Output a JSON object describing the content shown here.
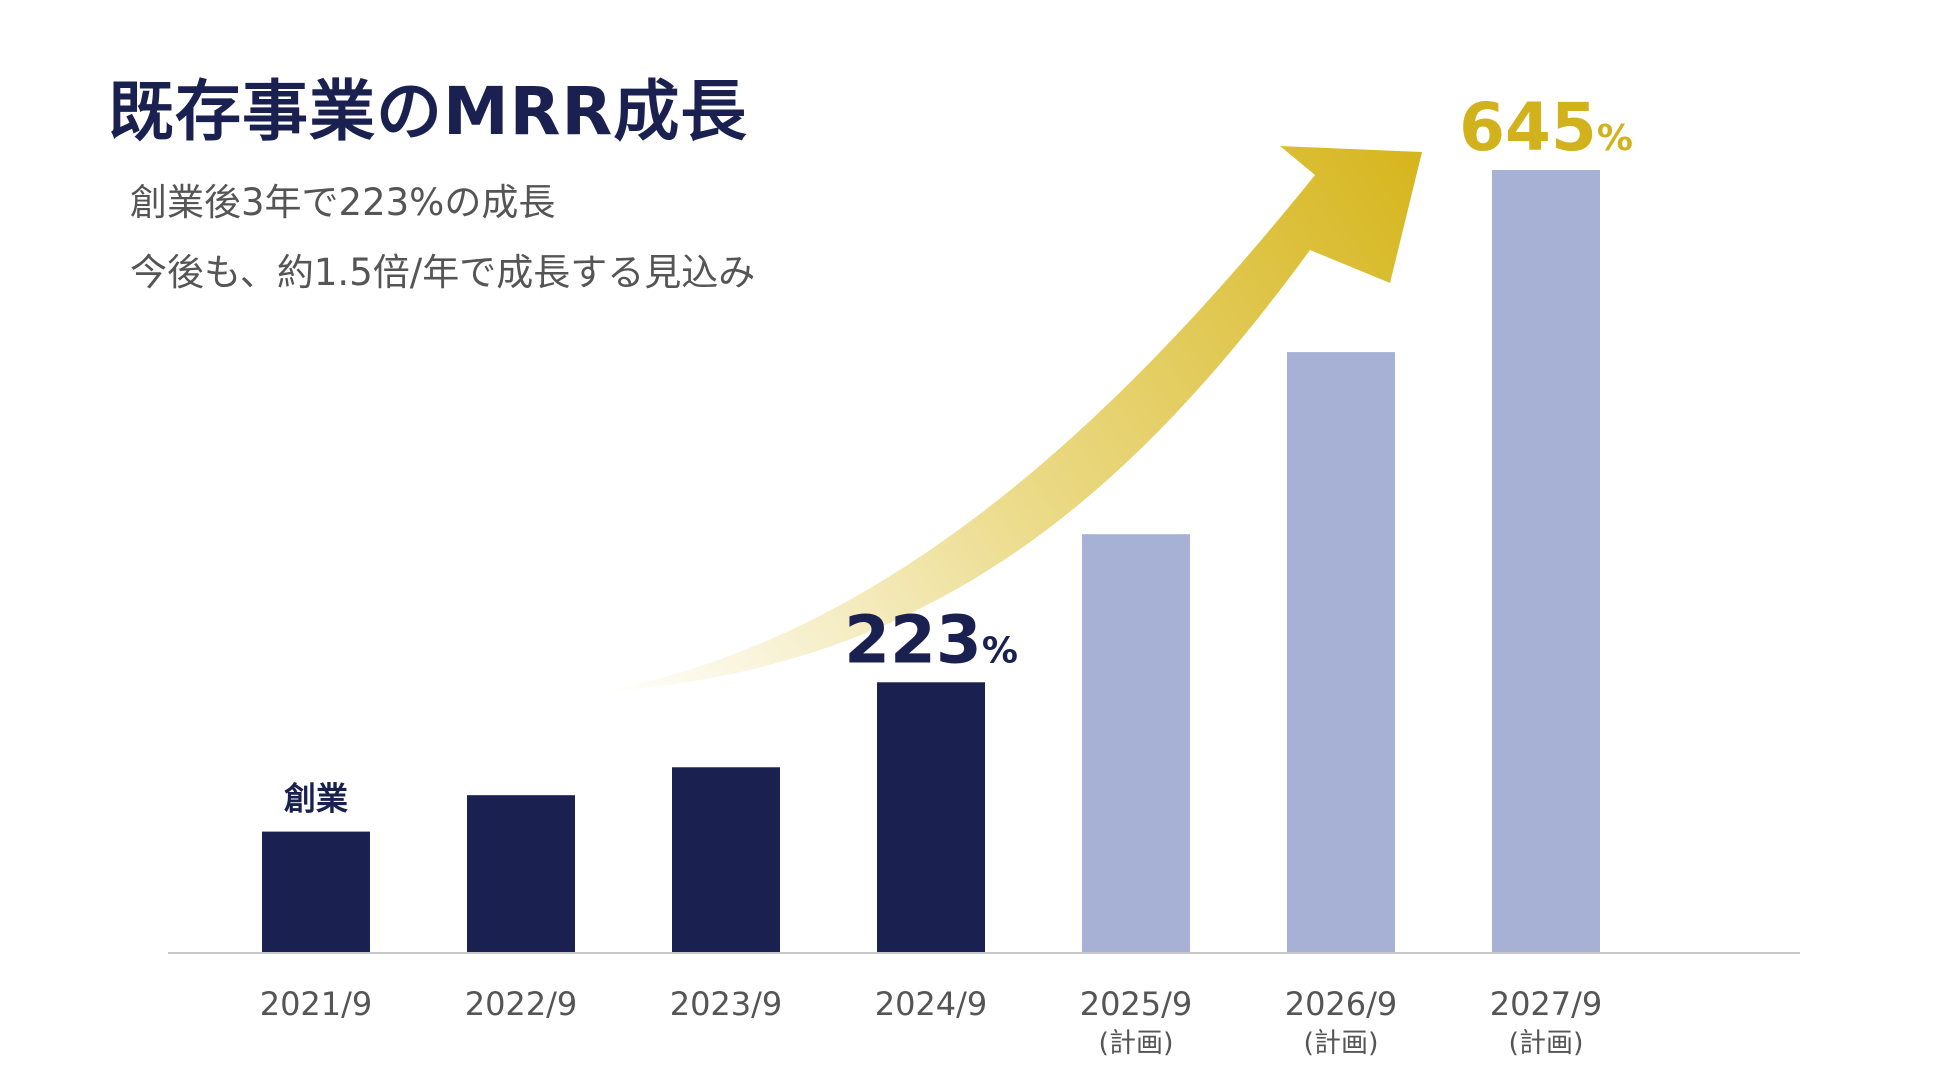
{
  "title": "既存事業のMRR成長",
  "subtitle_lines": [
    "創業後3年で223%の成長",
    "今後も、約1.5倍/年で成長する見込み"
  ],
  "chart_data": {
    "type": "bar",
    "title": "既存事業のMRR成長",
    "categories": [
      "2021/9",
      "2022/9",
      "2023/9",
      "2024/9",
      "2025/9",
      "2026/9",
      "2027/9"
    ],
    "sublabels": [
      "",
      "",
      "",
      "",
      "(計画)",
      "(計画)",
      "(計画)"
    ],
    "values": [
      100,
      130,
      153,
      223,
      345,
      495,
      645
    ],
    "unit": "%",
    "ylim": [
      0,
      660
    ],
    "grid": false,
    "actual_color": "#1a2150",
    "plan_color": "#a7b1d6",
    "annotations": [
      {
        "index": 0,
        "text": "創業",
        "color": "#1a2150"
      },
      {
        "index": 3,
        "number": "223",
        "suffix": "%",
        "color": "#1a2150"
      },
      {
        "index": 6,
        "number": "645",
        "suffix": "%",
        "color": "#d1b21d"
      }
    ],
    "trend_arrow": {
      "from_index": 1,
      "to_index": 6,
      "color": "#d8b91e"
    }
  }
}
